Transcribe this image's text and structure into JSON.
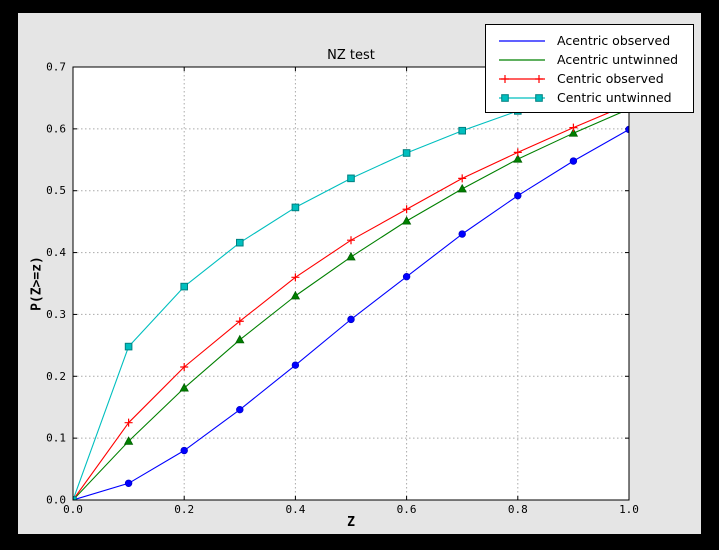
{
  "window": {
    "background_color": "#000000",
    "figure_background": "#e5e5e5"
  },
  "chart_data": {
    "type": "line",
    "title": "NZ test",
    "xlabel": "Z",
    "ylabel": "P(Z>=z)",
    "xlim": [
      0.0,
      1.0
    ],
    "ylim": [
      0.0,
      0.7
    ],
    "xticks": [
      "0.0",
      "0.2",
      "0.4",
      "0.6",
      "0.8",
      "1.0"
    ],
    "yticks": [
      "0.0",
      "0.1",
      "0.2",
      "0.3",
      "0.4",
      "0.5",
      "0.6",
      "0.7"
    ],
    "grid": true,
    "grid_style": "dotted",
    "legend_position": "upper right",
    "x": [
      0.0,
      0.1,
      0.2,
      0.3,
      0.4,
      0.5,
      0.6,
      0.7,
      0.8,
      0.9,
      1.0
    ],
    "series": [
      {
        "name": "Acentric observed",
        "color": "#0000ff",
        "edge": "#0000cc",
        "marker": "circle",
        "legend_markers": false,
        "values": [
          0.0,
          0.027,
          0.08,
          0.146,
          0.218,
          0.292,
          0.361,
          0.43,
          0.492,
          0.548,
          0.599
        ]
      },
      {
        "name": "Acentric untwinned",
        "color": "#008000",
        "edge": "#006000",
        "marker": "triangle",
        "legend_markers": false,
        "values": [
          0.0,
          0.095,
          0.181,
          0.259,
          0.33,
          0.393,
          0.451,
          0.503,
          0.551,
          0.593,
          0.632
        ]
      },
      {
        "name": "Centric observed",
        "color": "#ff0000",
        "edge": "#ff0000",
        "marker": "plus",
        "legend_markers": true,
        "values": [
          0.0,
          0.125,
          0.215,
          0.289,
          0.36,
          0.42,
          0.47,
          0.52,
          0.562,
          0.602,
          0.64
        ]
      },
      {
        "name": "Centric untwinned",
        "color": "#00bfbf",
        "edge": "#008080",
        "marker": "square",
        "legend_markers": true,
        "values": [
          0.0,
          0.248,
          0.345,
          0.416,
          0.473,
          0.52,
          0.561,
          0.597,
          0.629,
          0.657,
          0.683
        ]
      }
    ],
    "colors": {
      "plot_bg": "#ffffff",
      "grid": "#aaaaaa",
      "frame": "#000000",
      "tick_text": "#000000"
    }
  }
}
